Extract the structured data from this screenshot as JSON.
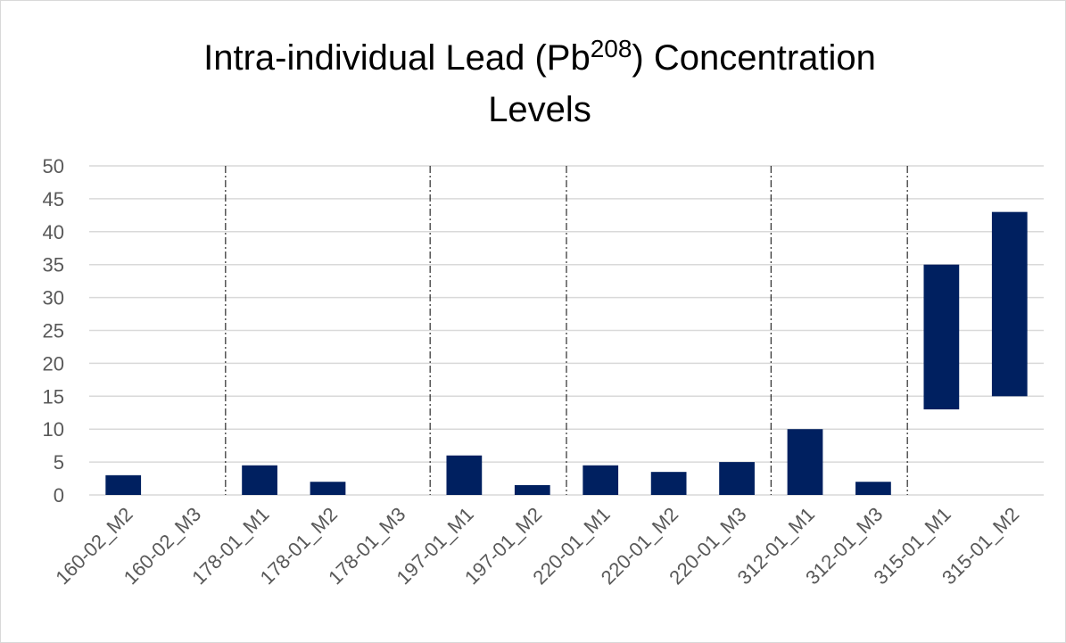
{
  "chart_data": {
    "type": "floating_bar",
    "title": [
      "Intra-individual Lead (Pb",
      "208",
      ") Concentration",
      "Levels"
    ],
    "categories": [
      "160-02_M2",
      "160-02_M3",
      "178-01_M1",
      "178-01_M2",
      "178-01_M3",
      "197-01_M1",
      "197-01_M2",
      "220-01_M1",
      "220-01_M2",
      "220-01_M3",
      "312-01_M1",
      "312-01_M3",
      "315-01_M1",
      "315-01_M2"
    ],
    "low": [
      0,
      null,
      0,
      0,
      null,
      0,
      0,
      0,
      0,
      0,
      0,
      0,
      13,
      15
    ],
    "high": [
      3,
      null,
      4.5,
      2,
      null,
      6,
      1.5,
      4.5,
      3.5,
      5,
      10,
      2,
      35,
      43
    ],
    "color": "#002060",
    "ylim": [
      0,
      50
    ],
    "yticks": [
      0,
      5,
      10,
      15,
      20,
      25,
      30,
      35,
      40,
      45,
      50
    ],
    "grid": true,
    "group_dividers": true
  }
}
